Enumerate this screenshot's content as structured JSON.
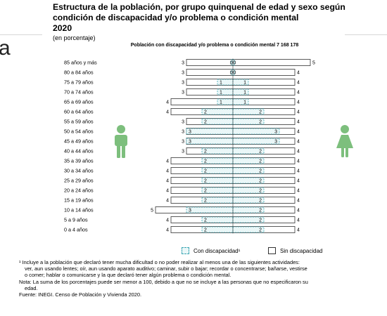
{
  "title": "Estructura de la población, por grupo quinquenal de edad y sexo según condición de discapacidad y/o problema o condición mental",
  "year": "2020",
  "subtitle": "(en porcentaje)",
  "side_glyph": "a",
  "population_label": "Población con discapacidad y/o problema o condición mental  7 168 178",
  "legend": {
    "with": "Con discapacidad¹",
    "without": "Sin discapacidad"
  },
  "notes": {
    "n1a": "¹ Incluye a la población que declaró tener mucha dificultad o no poder realizar al menos una de las siguientes actividades:",
    "n1b": "ver, aun usando lentes; oír, aun usando aparato auditivo; caminar, subir o bajar; recordar o concentrarse; bañarse, vestirse",
    "n1c": "o comer; hablar o comunicarse y la que declaró tener algún problema o condición mental.",
    "n2a": "Nota: La suma de los porcentajes puede ser menor a 100, debido a que no se incluye a las personas que no especificaron su",
    "n2b": "edad.",
    "source": "Fuente: INEGI. Censo de Población y Vivienda 2020."
  },
  "colors": {
    "disability_border": "#3aa6b3",
    "disability_fill": "#eaf7f8",
    "no_disability_border": "#333333",
    "figure": "#7dbf7d"
  },
  "icons": {
    "left": "man-icon",
    "right": "woman-icon"
  },
  "chart_data": {
    "type": "bar",
    "orientation": "horizontal-pyramid",
    "categories": [
      "85 años y más",
      "80 a 84 años",
      "75 a 79 años",
      "70 a 74 años",
      "65 a 69 años",
      "60 a 64 años",
      "55 a 59 años",
      "50 a 54 años",
      "45 a 49 años",
      "40 a 44 años",
      "35 a 39 años",
      "30 a 34 años",
      "25 a 29 años",
      "20 a 24 años",
      "15 a 19 años",
      "10 a 14 años",
      "5 a 9 años",
      "0 a 4 años"
    ],
    "series": [
      {
        "name": "Con discapacidad¹",
        "side": "left",
        "values": [
          0,
          0,
          1,
          1,
          1,
          2,
          2,
          3,
          3,
          2,
          2,
          2,
          2,
          2,
          2,
          3,
          2,
          2
        ]
      },
      {
        "name": "Sin discapacidad",
        "side": "left",
        "values": [
          3,
          3,
          3,
          3,
          4,
          4,
          3,
          3,
          3,
          3,
          4,
          4,
          4,
          4,
          4,
          5,
          4,
          4
        ]
      },
      {
        "name": "Con discapacidad¹",
        "side": "right",
        "values": [
          0,
          0,
          1,
          1,
          1,
          2,
          2,
          3,
          3,
          2,
          2,
          2,
          2,
          2,
          2,
          2,
          2,
          2
        ]
      },
      {
        "name": "Sin discapacidad",
        "side": "right",
        "values": [
          5,
          4,
          4,
          4,
          4,
          4,
          4,
          4,
          4,
          4,
          4,
          4,
          4,
          4,
          4,
          4,
          4,
          4
        ]
      }
    ]
  }
}
